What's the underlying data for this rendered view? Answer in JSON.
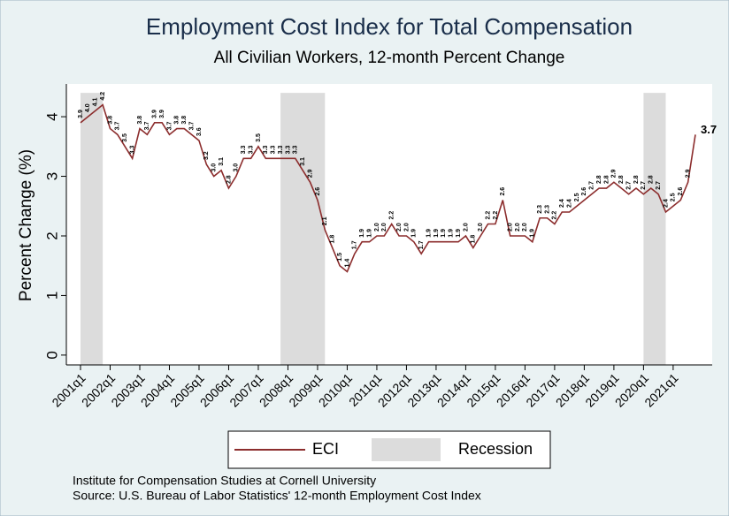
{
  "chart_data": {
    "type": "line",
    "title": "Employment Cost Index for Total Compensation",
    "subtitle": "All Civilian Workers, 12-month Percent Change",
    "y_label": "Percent Change (%)",
    "categories": [
      "2001q1",
      null,
      null,
      null,
      "2002q1",
      null,
      null,
      null,
      "2003q1",
      null,
      null,
      null,
      "2004q1",
      null,
      null,
      null,
      "2005q1",
      null,
      null,
      null,
      "2006q1",
      null,
      null,
      null,
      "2007q1",
      null,
      null,
      null,
      "2008q1",
      null,
      null,
      null,
      "2009q1",
      null,
      null,
      null,
      "2010q1",
      null,
      null,
      null,
      "2011q1",
      null,
      null,
      null,
      "2012q1",
      null,
      null,
      null,
      "2013q1",
      null,
      null,
      null,
      "2014q1",
      null,
      null,
      null,
      "2015q1",
      null,
      null,
      null,
      "2016q1",
      null,
      null,
      null,
      "2017q1",
      null,
      null,
      null,
      "2018q1",
      null,
      null,
      null,
      "2019q1",
      null,
      null,
      null,
      "2020q1",
      null,
      null,
      null,
      "2021q1",
      null,
      null,
      null
    ],
    "series": [
      {
        "name": "ECI",
        "color": "#8c2d2d",
        "values": [
          3.9,
          4.0,
          4.1,
          4.2,
          3.8,
          3.7,
          3.5,
          3.3,
          3.8,
          3.7,
          3.9,
          3.9,
          3.7,
          3.8,
          3.8,
          3.7,
          3.6,
          3.2,
          3.0,
          3.1,
          2.8,
          3.0,
          3.3,
          3.3,
          3.5,
          3.3,
          3.3,
          3.3,
          3.3,
          3.3,
          3.1,
          2.9,
          2.6,
          2.1,
          1.8,
          1.5,
          1.4,
          1.7,
          1.9,
          1.9,
          2.0,
          2.0,
          2.2,
          2.0,
          2.0,
          1.9,
          1.7,
          1.9,
          1.9,
          1.9,
          1.9,
          1.9,
          2.0,
          1.8,
          2.0,
          2.2,
          2.2,
          2.6,
          2.0,
          2.0,
          2.0,
          1.9,
          2.3,
          2.3,
          2.2,
          2.4,
          2.4,
          2.5,
          2.6,
          2.7,
          2.8,
          2.8,
          2.9,
          2.8,
          2.7,
          2.8,
          2.7,
          2.8,
          2.7,
          2.4,
          2.5,
          2.6,
          2.9,
          3.7
        ],
        "value_labels": [
          "3.9",
          "4.0",
          "4.1",
          "4.2",
          "3.8",
          "3.7",
          "3.5",
          "3.3",
          "3.8",
          "3.7",
          "3.9",
          "3.9",
          "3.7",
          "3.8",
          "3.8",
          "3.7",
          "3.6",
          "3.2",
          "3.0",
          "3.1",
          "2.8",
          "3.0",
          "3.3",
          "3.3",
          "3.5",
          "3.3",
          "3.3",
          "3.3",
          "3.3",
          "3.3",
          "3.1",
          "2.9",
          "2.6",
          "2.1",
          "1.8",
          "1.5",
          "1.4",
          "1.7",
          "1.9",
          "1.9",
          "2.0",
          "2.0",
          "2.2",
          "2.0",
          "2.0",
          "1.9",
          "1.7",
          "1.9",
          "1.9",
          "1.9",
          "1.9",
          "1.9",
          "2.0",
          "1.8",
          "2.0",
          "2.2",
          "2.2",
          "2.6",
          "2.0",
          "2.0",
          "2.0",
          "1.9",
          "2.3",
          "2.3",
          "2.2",
          "2.4",
          "2.4",
          "2.5",
          "2.6",
          "2.7",
          "2.8",
          "2.8",
          "2.9",
          "2.8",
          "2.7",
          "2.8",
          "2.7",
          "2.8",
          "2.7",
          "2.4",
          "2.5",
          "2.6",
          "2.9",
          "3.7"
        ]
      },
      {
        "name": "Recession",
        "color": "#dcdcdc",
        "values": [
          4.4,
          4.4,
          4.4,
          4.4,
          null,
          null,
          null,
          null,
          null,
          null,
          null,
          null,
          null,
          null,
          null,
          null,
          null,
          null,
          null,
          null,
          null,
          null,
          null,
          null,
          null,
          null,
          null,
          4.4,
          4.4,
          4.4,
          4.4,
          4.4,
          4.4,
          4.4,
          null,
          null,
          null,
          null,
          null,
          null,
          null,
          null,
          null,
          null,
          null,
          null,
          null,
          null,
          null,
          null,
          null,
          null,
          null,
          null,
          null,
          null,
          null,
          null,
          null,
          null,
          null,
          null,
          null,
          null,
          null,
          null,
          null,
          null,
          null,
          null,
          null,
          null,
          null,
          null,
          null,
          null,
          4.4,
          4.4,
          4.4,
          4.4,
          null,
          null,
          null,
          null
        ]
      }
    ],
    "ylim": [
      -0.15,
      4.55
    ],
    "yticks": [
      0,
      1,
      2,
      3,
      4
    ],
    "notes": [
      "Institute for Compensation Studies at Cornell University",
      "Source: U.S. Bureau of Labor Statistics' 12-month Employment Cost Index"
    ]
  }
}
